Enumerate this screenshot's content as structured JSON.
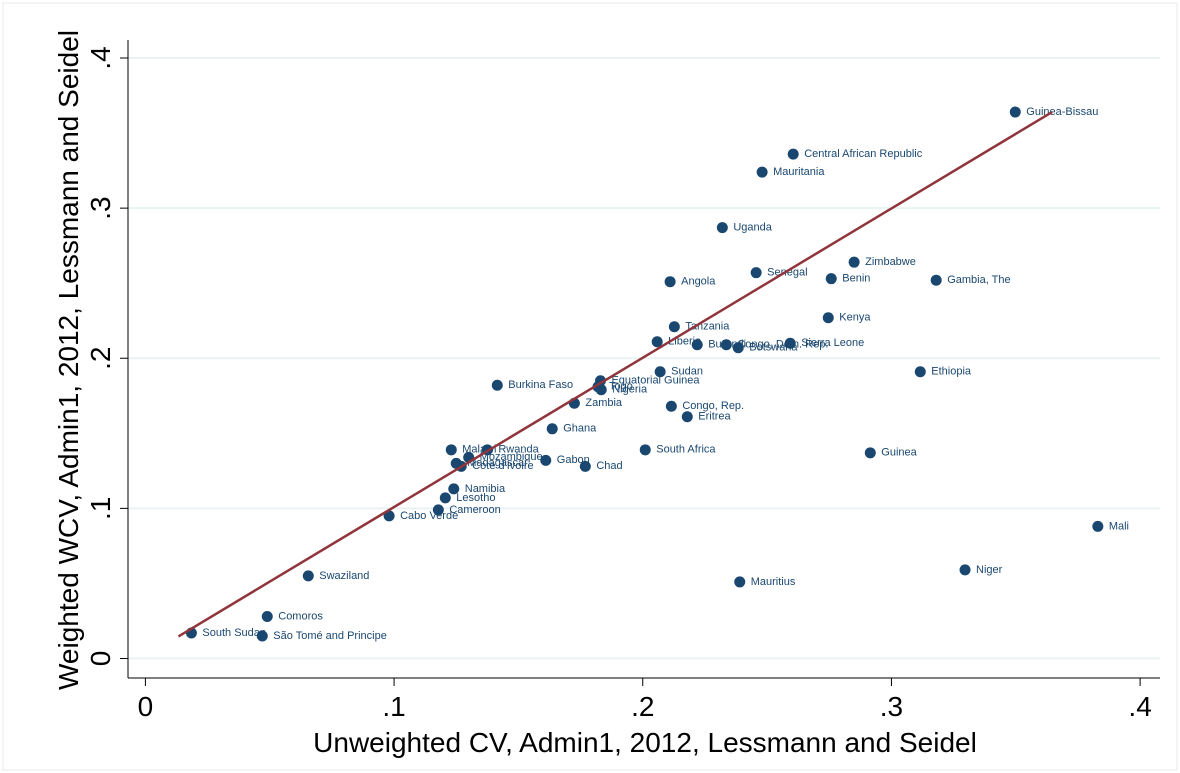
{
  "chart_data": {
    "type": "scatter",
    "x_label": "Unweighted CV, Admin1, 2012, Lessmann and Seidel",
    "y_label": "Weighted WCV, Admin1, 2012, Lessmann and Seidel",
    "color": "#1a476f",
    "labels": [
      "Guinea-Bissau",
      "Central African Republic",
      "Mauritania",
      "Uganda",
      "Zimbabwe",
      "Senegal",
      "Benin",
      "Gambia, The",
      "Angola",
      "Kenya",
      "Tanzania",
      "Liberia",
      "Burundi",
      "Congo, Dem. Rep.",
      "Botswana",
      "Sierra Leone",
      "Sudan",
      "Ethiopia",
      "Equatorial Guinea",
      "Togo",
      "Nigeria",
      "Burkina Faso",
      "Zambia",
      "Congo, Rep.",
      "Eritrea",
      "Ghana",
      "South Africa",
      "Malawi",
      "Rwanda",
      "Mozambique",
      "Guinea",
      "Gabon",
      "Madagascar",
      "Cote d'Ivoire",
      "Chad",
      "Namibia",
      "Lesotho",
      "Cameroon",
      "Cabo Verde",
      "Mali",
      "Niger",
      "Swaziland",
      "Mauritius",
      "Comoros",
      "South Sudan",
      "São Tomé and Principe"
    ],
    "x": [
      0.3498,
      0.2605,
      0.248,
      0.232,
      0.285,
      0.2456,
      0.2758,
      0.318,
      0.211,
      0.2746,
      0.2127,
      0.2058,
      0.2219,
      0.2336,
      0.2384,
      0.2593,
      0.207,
      0.3116,
      0.183,
      0.182,
      0.1833,
      0.1415,
      0.1725,
      0.2115,
      0.2179,
      0.1636,
      0.201,
      0.123,
      0.1375,
      0.13,
      0.2915,
      0.161,
      0.125,
      0.127,
      0.1769,
      0.124,
      0.1206,
      0.1178,
      0.098,
      0.383,
      0.3296,
      0.0655,
      0.239,
      0.049,
      0.0185,
      0.047
    ],
    "y": [
      0.364,
      0.336,
      0.324,
      0.287,
      0.264,
      0.257,
      0.253,
      0.252,
      0.251,
      0.227,
      0.221,
      0.211,
      0.209,
      0.209,
      0.207,
      0.21,
      0.191,
      0.191,
      0.185,
      0.181,
      0.179,
      0.182,
      0.17,
      0.168,
      0.161,
      0.153,
      0.139,
      0.139,
      0.139,
      0.134,
      0.137,
      0.132,
      0.13,
      0.128,
      0.128,
      0.113,
      0.107,
      0.099,
      0.095,
      0.088,
      0.059,
      0.055,
      0.051,
      0.028,
      0.017,
      0.015
    ],
    "fit_line": {
      "x": [
        0.0133,
        0.3646
      ],
      "y": [
        0.0147,
        0.364
      ],
      "color": "#90353b"
    },
    "xlim": [
      -0.007,
      0.408
    ],
    "ylim": [
      -0.013,
      0.412
    ],
    "xticks": [
      0,
      {
        "value": 0.1,
        "label": ".1"
      },
      {
        "value": 0.2,
        "label": ".2"
      },
      {
        "value": 0.3,
        "label": ".3"
      },
      {
        "value": 0.4,
        "label": ".4"
      }
    ],
    "yticks": [
      0,
      {
        "value": 0.1,
        "label": ".1"
      },
      {
        "value": 0.2,
        "label": ".2"
      },
      {
        "value": 0.3,
        "label": ".3"
      },
      {
        "value": 0.4,
        "label": ".4"
      }
    ],
    "grid": true
  }
}
